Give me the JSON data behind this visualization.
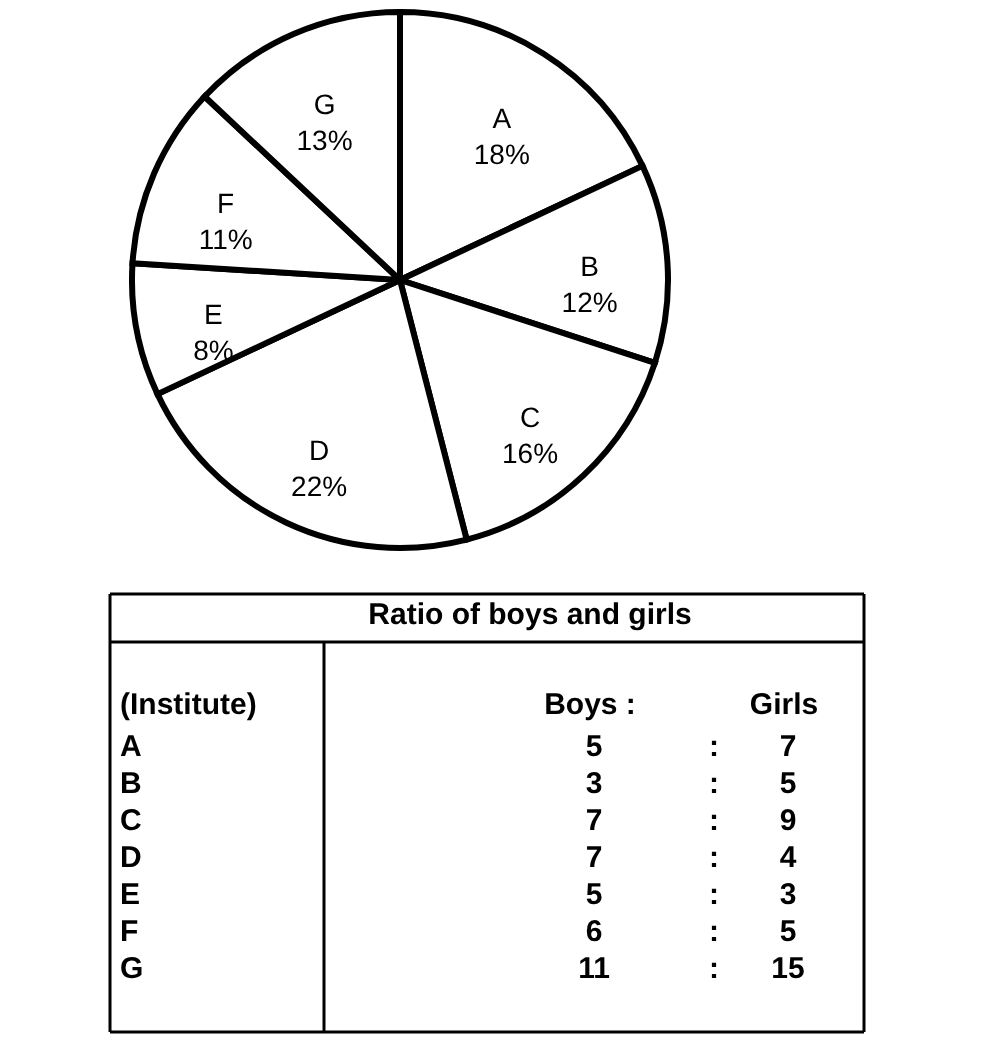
{
  "chart_data": [
    {
      "type": "pie",
      "categories": [
        "A",
        "B",
        "C",
        "D",
        "E",
        "F",
        "G"
      ],
      "values": [
        18,
        12,
        16,
        22,
        8,
        11,
        13
      ],
      "value_labels": [
        "18%",
        "12%",
        "16%",
        "22%",
        "8%",
        "11%",
        "13%"
      ],
      "colors": [
        "#ffffff",
        "#ffffff",
        "#ffffff",
        "#ffffff",
        "#ffffff",
        "#ffffff",
        "#ffffff"
      ]
    },
    {
      "type": "other",
      "title": "Ratio of boys and girls",
      "annotations": [
        "(Institute)",
        "Boys :",
        "Girls",
        "A",
        "5",
        ":",
        "7",
        "B",
        "3",
        ":",
        "5",
        "C",
        "7",
        ":",
        "9",
        "D",
        "7",
        ":",
        "4",
        "E",
        "5",
        ":",
        "3",
        "F",
        "6",
        ":",
        "5",
        "G",
        "11",
        ":",
        "15"
      ]
    }
  ]
}
